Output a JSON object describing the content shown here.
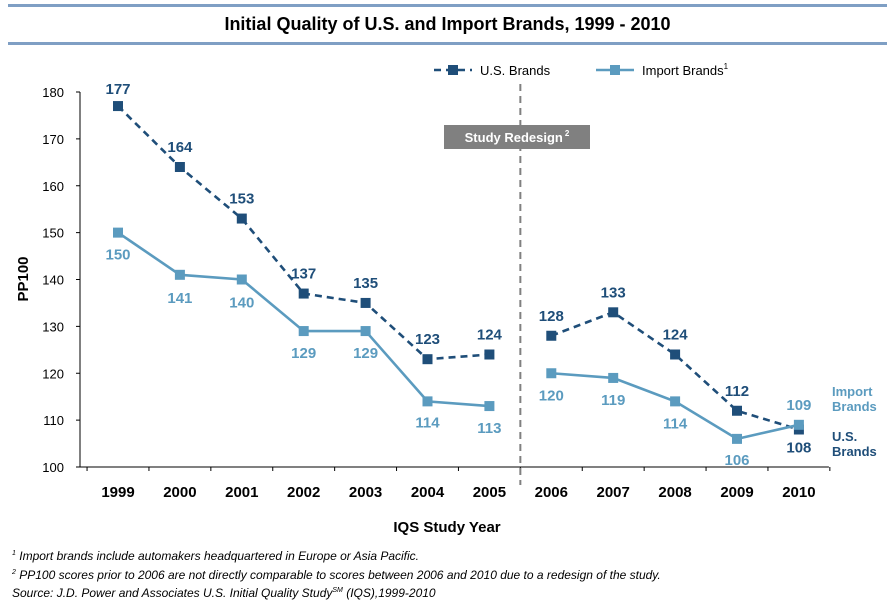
{
  "title": "Initial Quality of U.S. and Import Brands, 1999 - 2010",
  "footnotes": {
    "note1_mark": "1",
    "note1": " Import brands include automakers headquartered in Europe or Asia Pacific.",
    "note2_mark": "2",
    "note2": " PP100 scores prior to 2006 are not directly comparable to scores between 2006 and 2010 due to a redesign of the study.",
    "source": "Source: J.D. Power and Associates U.S. Initial Quality Study",
    "source_sm": "SM",
    "source_tail": " (IQS),1999-2010"
  },
  "chart_data": {
    "type": "line",
    "title": "Initial Quality of U.S. and Import Brands, 1999 - 2010",
    "xlabel": "IQS Study Year",
    "ylabel": "PP100",
    "ylim": [
      100,
      180
    ],
    "yticks": [
      100,
      110,
      120,
      130,
      140,
      150,
      160,
      170,
      180
    ],
    "categories": [
      "1999",
      "2000",
      "2001",
      "2002",
      "2003",
      "2004",
      "2005",
      "2006",
      "2007",
      "2008",
      "2009",
      "2010"
    ],
    "series": [
      {
        "name": "U.S. Brands",
        "legend_label": "U.S. Brands",
        "legend_sup": "",
        "end_label": [
          "U.S.",
          "Brands"
        ],
        "color": "#1f4e79",
        "style": "dashed",
        "values": [
          177,
          164,
          153,
          137,
          135,
          123,
          124,
          128,
          133,
          124,
          112,
          108
        ]
      },
      {
        "name": "Import Brands",
        "legend_label": "Import Brands",
        "legend_sup": "1",
        "end_label": [
          "Import",
          "Brands"
        ],
        "color": "#5b9bbf",
        "style": "solid",
        "values": [
          150,
          141,
          140,
          129,
          129,
          114,
          113,
          120,
          119,
          114,
          106,
          109
        ]
      }
    ],
    "break_after": "2005",
    "annotation": {
      "text": "Study Redesign",
      "sup": "2"
    },
    "legend_position": "top-right",
    "grid": false
  }
}
